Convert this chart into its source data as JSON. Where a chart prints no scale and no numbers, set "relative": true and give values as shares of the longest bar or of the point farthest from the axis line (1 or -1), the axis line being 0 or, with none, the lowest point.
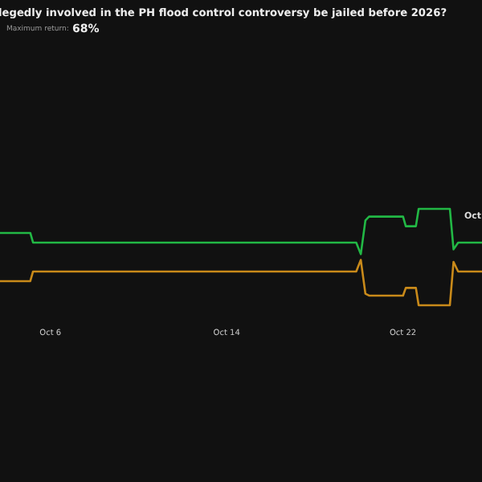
{
  "chart_data": {
    "type": "line",
    "title": "legedly involved in the PH flood control controversy be jailed before 2026?",
    "annotations": [
      "Maximum return:",
      "68%",
      "Oct"
    ],
    "relative": true,
    "x": [
      "--10-03T18:00",
      "--10-05T03:00",
      "--10-05T06:00",
      "--10-19T22:00",
      "--10-20T03:00",
      "--10-20T08:00",
      "--10-20T12:00",
      "--10-22T01:00",
      "--10-22T04:00",
      "--10-22T15:00",
      "--10-22T18:00",
      "--10-24T04:00",
      "--10-24T08:00",
      "--10-24T13:00",
      "--10-25T15:00"
    ],
    "xlim": [
      "--10-03T18:00",
      "--10-25T15:00"
    ],
    "xticks": [
      {
        "value": "--10-06",
        "label": "Oct 6"
      },
      {
        "value": "--10-14",
        "label": "Oct 14"
      },
      {
        "value": "--10-22",
        "label": "Oct 22"
      }
    ],
    "series": [
      {
        "color": "#22b845",
        "values": [
          0.75,
          0.75,
          0.65,
          0.65,
          0.53,
          0.88,
          0.92,
          0.92,
          0.82,
          0.82,
          1,
          1,
          0.58,
          0.65,
          0.65
        ]
      },
      {
        "color": "#c98a1a",
        "values": [
          0.25,
          0.25,
          0.35,
          0.35,
          0.47,
          0.12,
          0.1,
          0.1,
          0.18,
          0.18,
          0,
          0,
          0.45,
          0.35,
          0.35
        ]
      }
    ],
    "marker": "none",
    "line_style": "solid"
  }
}
